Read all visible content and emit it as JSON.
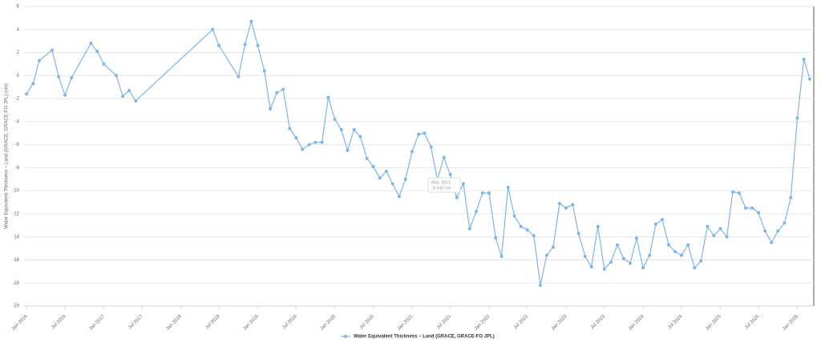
{
  "chart_data": {
    "type": "line",
    "y_label": "Water Equivalent Thickness – Land (GRACE, GRACE-FO JPL) (cm)",
    "x": [
      "2016-01",
      "2016-02",
      "2016-03",
      "2016-05",
      "2016-06",
      "2016-07",
      "2016-08",
      "2016-11",
      "2016-12",
      "2017-01",
      "2017-03",
      "2017-04",
      "2017-05",
      "2017-06",
      "2018-06",
      "2018-07",
      "2018-10",
      "2018-11",
      "2018-12",
      "2019-01",
      "2019-02",
      "2019-03",
      "2019-04",
      "2019-05",
      "2019-06",
      "2019-07",
      "2019-08",
      "2019-09",
      "2019-10",
      "2019-11",
      "2019-12",
      "2020-01",
      "2020-02",
      "2020-03",
      "2020-04",
      "2020-05",
      "2020-06",
      "2020-07",
      "2020-08",
      "2020-09",
      "2020-10",
      "2020-11",
      "2020-12",
      "2021-01",
      "2021-02",
      "2021-03",
      "2021-04",
      "2021-05",
      "2021-06",
      "2021-07",
      "2021-08",
      "2021-09",
      "2021-10",
      "2021-11",
      "2021-12",
      "2022-01",
      "2022-02",
      "2022-03",
      "2022-04",
      "2022-05",
      "2022-06",
      "2022-07",
      "2022-08",
      "2022-09",
      "2022-10",
      "2022-11",
      "2022-12",
      "2023-01",
      "2023-02",
      "2023-03",
      "2023-04",
      "2023-05",
      "2023-06",
      "2023-07",
      "2023-08",
      "2023-09",
      "2023-10",
      "2023-11",
      "2023-12",
      "2024-01",
      "2024-02",
      "2024-03",
      "2024-04",
      "2024-05",
      "2024-06",
      "2024-07",
      "2024-08",
      "2024-09",
      "2024-10",
      "2024-11",
      "2024-12",
      "2025-01",
      "2025-02",
      "2025-03",
      "2025-04",
      "2025-05",
      "2025-06",
      "2025-07",
      "2025-08",
      "2025-09",
      "2025-10",
      "2025-11",
      "2025-12",
      "2026-01",
      "2026-02",
      "2026-03"
    ],
    "series": [
      {
        "name": "Water Equivalent Thickness – Land (GRACE, GRACE-FO JPL)",
        "color": "#7cb5ec",
        "values": [
          -1.6,
          -0.7,
          1.3,
          2.2,
          -0.1,
          -1.7,
          -0.2,
          2.8,
          2.1,
          1.0,
          0.0,
          -1.8,
          -1.3,
          -2.2,
          4.0,
          2.6,
          -0.1,
          2.7,
          4.7,
          2.6,
          0.4,
          -2.9,
          -1.5,
          -1.2,
          -4.6,
          -5.4,
          -6.4,
          -6.0,
          -5.8,
          -5.8,
          -1.9,
          -3.8,
          -4.7,
          -6.5,
          -4.7,
          -5.3,
          -7.2,
          -7.9,
          -8.9,
          -8.3,
          -9.4,
          -10.5,
          -9.0,
          -6.6,
          -5.1,
          -5.0,
          -6.2,
          -9.042,
          -7.1,
          -8.6,
          -10.6,
          -9.4,
          -13.3,
          -11.8,
          -10.2,
          -10.2,
          -14.1,
          -15.7,
          -9.7,
          -12.2,
          -13.1,
          -13.4,
          -13.9,
          -18.2,
          -15.6,
          -14.9,
          -11.1,
          -11.5,
          -11.2,
          -13.7,
          -15.7,
          -16.6,
          -13.1,
          -16.8,
          -16.2,
          -14.7,
          -15.9,
          -16.3,
          -14.1,
          -16.7,
          -15.6,
          -12.9,
          -12.5,
          -14.7,
          -15.3,
          -15.6,
          -14.7,
          -16.7,
          -16.1,
          -13.1,
          -13.9,
          -13.3,
          -14.0,
          -10.1,
          -10.2,
          -11.5,
          -11.5,
          -11.9,
          -13.5,
          -14.5,
          -13.5,
          -12.8,
          -10.6,
          -3.7,
          1.4,
          -0.3
        ]
      }
    ],
    "xlim": [
      "2015-12-20",
      "2026-03-20"
    ],
    "xticks": [
      {
        "value": "2016-01",
        "label": "Jan 2016"
      },
      {
        "value": "2016-07",
        "label": "Jul 2016"
      },
      {
        "value": "2017-01",
        "label": "Jan 2017"
      },
      {
        "value": "2017-07",
        "label": "Jul 2017"
      },
      {
        "value": "2018-01",
        "label": "Jan 2018"
      },
      {
        "value": "2018-07",
        "label": "Jul 2018"
      },
      {
        "value": "2019-01",
        "label": "Jan 2019"
      },
      {
        "value": "2019-07",
        "label": "Jul 2019"
      },
      {
        "value": "2020-01",
        "label": "Jan 2020"
      },
      {
        "value": "2020-07",
        "label": "Jul 2020"
      },
      {
        "value": "2021-01",
        "label": "Jan 2021"
      },
      {
        "value": "2021-07",
        "label": "Jul 2021"
      },
      {
        "value": "2022-01",
        "label": "Jan 2022"
      },
      {
        "value": "2022-07",
        "label": "Jul 2022"
      },
      {
        "value": "2023-01",
        "label": "Jan 2023"
      },
      {
        "value": "2023-07",
        "label": "Jul 2023"
      },
      {
        "value": "2024-01",
        "label": "Jan 2024"
      },
      {
        "value": "2024-07",
        "label": "Jul 2024"
      },
      {
        "value": "2025-01",
        "label": "Jan 2025"
      },
      {
        "value": "2025-07",
        "label": "Jul 2025"
      },
      {
        "value": "2026-01",
        "label": "Jan 2026"
      }
    ],
    "ylim": [
      -20,
      6
    ],
    "yticks": [
      -20,
      -18,
      -16,
      -14,
      -12,
      -10,
      -8,
      -6,
      -4,
      -2,
      0,
      2,
      4,
      6
    ],
    "grid": true,
    "legend": "bottom",
    "tooltip": {
      "title": "May 2021",
      "text": "-9.042 cm"
    }
  }
}
